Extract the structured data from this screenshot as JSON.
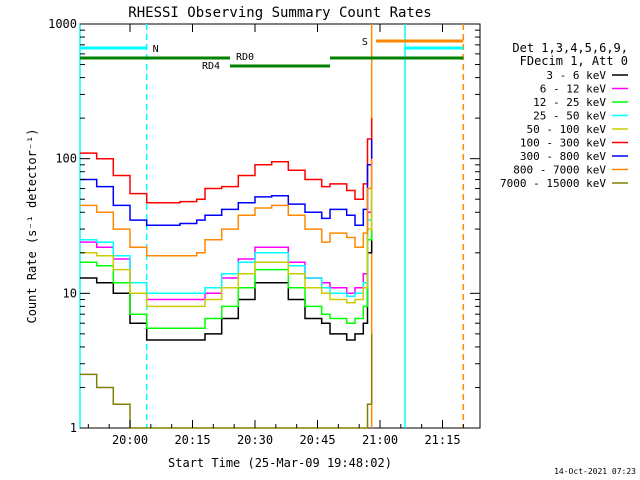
{
  "chart_data": {
    "type": "line",
    "title": "RHESSI Observing Summary Count Rates",
    "xlabel": "Start Time (25-Mar-09 19:48:02)",
    "ylabel": "Count Rate (s⁻¹ detector⁻¹)",
    "yscale": "log",
    "ylim": [
      1,
      1000
    ],
    "xlim": [
      0,
      96
    ],
    "x_ticks": [
      {
        "value": 12,
        "label": "20:00"
      },
      {
        "value": 27,
        "label": "20:15"
      },
      {
        "value": 42,
        "label": "20:30"
      },
      {
        "value": 57,
        "label": "20:45"
      },
      {
        "value": 72,
        "label": "21:00"
      },
      {
        "value": 87,
        "label": "21:15"
      }
    ],
    "y_ticks": [
      {
        "value": 1,
        "label": "1"
      },
      {
        "value": 10,
        "label": "10"
      },
      {
        "value": 100,
        "label": "100"
      },
      {
        "value": 1000,
        "label": "1000"
      }
    ],
    "legend": {
      "position": "right",
      "header": [
        "Det 1,3,4,5,6,9,",
        "FDecim 1, Att 0"
      ]
    },
    "x": [
      0,
      4,
      8,
      12,
      16,
      20,
      24,
      28,
      30,
      34,
      38,
      42,
      46,
      50,
      54,
      58,
      60,
      64,
      66,
      68,
      69,
      70
    ],
    "series": [
      {
        "name": "3 - 6 keV",
        "color": "#000000",
        "values": [
          13,
          12,
          10,
          6,
          4.5,
          4.5,
          4.5,
          4.5,
          5,
          6.5,
          9,
          12,
          12,
          9,
          6.5,
          6,
          5,
          4.5,
          5,
          6,
          20,
          50
        ]
      },
      {
        "name": "6 - 12 keV",
        "color": "#ff00ff",
        "values": [
          24,
          22,
          18,
          12,
          9,
          9,
          9,
          9,
          10,
          13,
          18,
          22,
          22,
          17,
          13,
          12,
          11,
          10,
          11,
          14,
          40,
          110
        ]
      },
      {
        "name": "12 - 25 keV",
        "color": "#00ff00",
        "values": [
          17,
          16,
          12,
          7,
          5.5,
          5.5,
          5.5,
          5.5,
          6.5,
          8,
          11,
          15,
          15,
          11,
          8,
          7,
          6.5,
          6,
          6.5,
          8,
          25,
          70
        ]
      },
      {
        "name": "25 - 50 keV",
        "color": "#00ffff",
        "values": [
          25,
          24,
          19,
          12,
          10,
          10,
          10,
          10,
          11,
          14,
          17,
          20,
          20,
          16,
          13,
          11,
          10,
          9.5,
          10,
          12,
          35,
          90
        ]
      },
      {
        "name": "50 - 100 keV",
        "color": "#cccc00",
        "values": [
          20,
          19,
          15,
          10,
          8,
          8,
          8,
          8,
          9,
          11,
          14,
          17,
          17,
          14,
          11,
          10,
          9,
          8.5,
          9,
          11,
          30,
          80
        ]
      },
      {
        "name": "100 - 300 keV",
        "color": "#ff0000",
        "values": [
          110,
          100,
          75,
          55,
          47,
          47,
          48,
          50,
          60,
          62,
          75,
          90,
          95,
          82,
          70,
          62,
          65,
          58,
          50,
          65,
          140,
          200
        ]
      },
      {
        "name": "300 - 800 keV",
        "color": "#0000ff",
        "values": [
          70,
          62,
          45,
          35,
          32,
          32,
          33,
          35,
          38,
          42,
          47,
          52,
          53,
          46,
          40,
          36,
          42,
          38,
          32,
          42,
          90,
          140
        ]
      },
      {
        "name": "800 - 7000 keV",
        "color": "#ff8800",
        "values": [
          45,
          40,
          30,
          22,
          19,
          19,
          19,
          20,
          25,
          30,
          38,
          43,
          45,
          38,
          30,
          24,
          28,
          26,
          22,
          28,
          60,
          100
        ]
      },
      {
        "name": "7000 - 15000 keV",
        "color": "#808000",
        "values": [
          2.5,
          2,
          1.5,
          1,
          1,
          1,
          1,
          1,
          1,
          1,
          1,
          1,
          1,
          1,
          1,
          1,
          1,
          1,
          1,
          1,
          1.5,
          5
        ]
      }
    ],
    "annotations": {
      "N_bar": {
        "label": "N",
        "color": "#00ffff",
        "segments": [
          [
            0,
            16
          ],
          [
            78,
            92
          ]
        ]
      },
      "S_bar": {
        "label": "S",
        "color": "#ff8800",
        "segments": [
          [
            71,
            92
          ]
        ]
      },
      "RD_bar": {
        "color": "#008000",
        "labels": [
          "RD0",
          "RD4"
        ],
        "segments": [
          [
            0,
            36
          ],
          [
            36,
            60
          ],
          [
            60,
            92
          ]
        ]
      },
      "vertical_lines": [
        {
          "x": 0,
          "color": "#00ffff",
          "style": "solid"
        },
        {
          "x": 16,
          "color": "#00ffff",
          "style": "dashed"
        },
        {
          "x": 70,
          "color": "#ff8800",
          "style": "solid"
        },
        {
          "x": 78,
          "color": "#00ffff",
          "style": "solid"
        },
        {
          "x": 92,
          "color": "#ff8800",
          "style": "dashed"
        }
      ]
    }
  },
  "footer": {
    "timestamp": "14-Oct-2021 07:23"
  }
}
